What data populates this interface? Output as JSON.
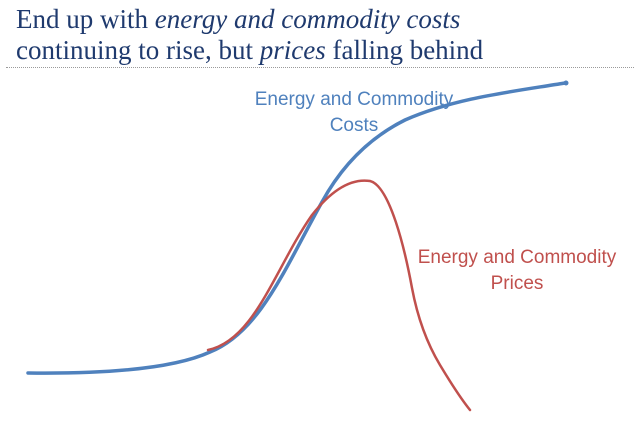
{
  "title": {
    "line1_prefix": "End up with ",
    "line1_emph": "energy and commodity costs",
    "line2_prefix": "continuing to rise, but ",
    "line2_emph": "prices",
    "line2_suffix": " falling behind"
  },
  "diagram": {
    "costs_label_line1": "Energy and Commodity",
    "costs_label_line2": "Costs",
    "prices_label_line1": "Energy and Commodity",
    "prices_label_line2": "Prices",
    "colors": {
      "costs": "#4f81bd",
      "prices": "#c0504d",
      "title": "#1f3a6e"
    }
  }
}
